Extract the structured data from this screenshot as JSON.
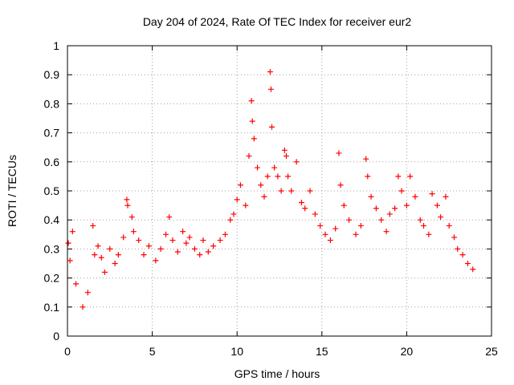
{
  "chart_data": {
    "type": "scatter",
    "title": "Day 204 of 2024, Rate Of TEC Index for receiver eur2",
    "xlabel": "GPS time / hours",
    "ylabel": "ROTI / TECUs",
    "xlim": [
      0,
      25
    ],
    "ylim": [
      0,
      1
    ],
    "x_ticks": [
      0,
      5,
      10,
      15,
      20,
      25
    ],
    "y_ticks": [
      0,
      0.1,
      0.2,
      0.3,
      0.4,
      0.5,
      0.6,
      0.7,
      0.8,
      0.9,
      1
    ],
    "x_tick_labels": [
      "0",
      "5",
      "10",
      "15",
      "20",
      "25"
    ],
    "y_tick_labels": [
      "0",
      "0.1",
      "0.2",
      "0.3",
      "0.4",
      "0.5",
      "0.6",
      "0.7",
      "0.8",
      "0.9",
      "1"
    ],
    "grid": true,
    "marker": "+",
    "marker_color": "#ff0000",
    "series": [
      {
        "x": [
          0.05,
          0.15,
          0.3,
          0.5,
          0.9,
          1.2,
          1.5,
          1.6,
          1.8,
          2.0,
          2.2,
          2.5,
          2.8,
          3.0,
          3.3,
          3.5,
          3.55,
          3.8,
          3.9,
          4.2,
          4.5,
          4.8,
          5.2,
          5.5,
          5.8,
          6.0,
          6.2,
          6.5,
          6.8,
          7.0,
          7.2,
          7.5,
          7.8,
          8.0,
          8.3,
          8.6,
          9.0,
          9.3,
          9.6,
          9.8,
          10.0,
          10.2,
          10.5,
          10.7,
          10.85,
          10.9,
          11.0,
          11.2,
          11.4,
          11.6,
          11.8,
          11.95,
          12.0,
          12.05,
          12.2,
          12.4,
          12.6,
          12.8,
          12.9,
          13.0,
          13.2,
          13.5,
          13.8,
          14.0,
          14.3,
          14.6,
          14.9,
          15.2,
          15.5,
          15.8,
          16.0,
          16.1,
          16.3,
          16.6,
          17.0,
          17.3,
          17.6,
          17.7,
          17.9,
          18.2,
          18.5,
          18.8,
          19.0,
          19.3,
          19.5,
          19.7,
          20.0,
          20.2,
          20.5,
          20.8,
          21.0,
          21.3,
          21.5,
          21.8,
          22.0,
          22.3,
          22.5,
          22.8,
          23.0,
          23.3,
          23.6,
          23.9
        ],
        "y": [
          0.32,
          0.26,
          0.36,
          0.18,
          0.1,
          0.15,
          0.38,
          0.28,
          0.31,
          0.27,
          0.22,
          0.3,
          0.25,
          0.28,
          0.34,
          0.47,
          0.45,
          0.41,
          0.36,
          0.33,
          0.28,
          0.31,
          0.26,
          0.3,
          0.35,
          0.41,
          0.33,
          0.29,
          0.36,
          0.32,
          0.34,
          0.3,
          0.28,
          0.33,
          0.29,
          0.31,
          0.33,
          0.35,
          0.4,
          0.42,
          0.47,
          0.52,
          0.45,
          0.62,
          0.81,
          0.74,
          0.68,
          0.58,
          0.52,
          0.48,
          0.55,
          0.91,
          0.85,
          0.72,
          0.58,
          0.55,
          0.5,
          0.64,
          0.62,
          0.55,
          0.5,
          0.6,
          0.46,
          0.44,
          0.5,
          0.42,
          0.38,
          0.35,
          0.33,
          0.37,
          0.63,
          0.52,
          0.45,
          0.4,
          0.35,
          0.38,
          0.61,
          0.55,
          0.48,
          0.44,
          0.4,
          0.36,
          0.42,
          0.44,
          0.55,
          0.5,
          0.45,
          0.55,
          0.48,
          0.4,
          0.38,
          0.35,
          0.49,
          0.45,
          0.41,
          0.48,
          0.38,
          0.34,
          0.3,
          0.28,
          0.25,
          0.23
        ]
      }
    ]
  }
}
